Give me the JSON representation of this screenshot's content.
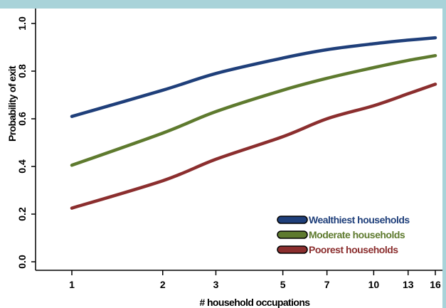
{
  "chart_data": {
    "type": "line",
    "title": "",
    "xlabel": "# household occupations",
    "ylabel": "Probability of exit",
    "x_scale": "log",
    "x_ticks": [
      1,
      2,
      3,
      5,
      7,
      10,
      13,
      16
    ],
    "y_ticks": [
      "0.0",
      "0.2",
      "0.4",
      "0.6",
      "0.8",
      "1.0"
    ],
    "xlim": [
      1,
      16
    ],
    "ylim": [
      0,
      1
    ],
    "grid": false,
    "legend_position": "bottom-right",
    "x": [
      1,
      2,
      3,
      5,
      7,
      10,
      13,
      16
    ],
    "series": [
      {
        "name": "Wealthiest households",
        "color": "#1f3f7a",
        "values": [
          0.61,
          0.72,
          0.79,
          0.855,
          0.89,
          0.915,
          0.93,
          0.94
        ]
      },
      {
        "name": "Moderate households",
        "color": "#5e7a2e",
        "values": [
          0.405,
          0.54,
          0.63,
          0.72,
          0.77,
          0.815,
          0.845,
          0.865
        ]
      },
      {
        "name": "Poorest households",
        "color": "#8b2e2e",
        "values": [
          0.225,
          0.34,
          0.43,
          0.525,
          0.6,
          0.655,
          0.705,
          0.745
        ]
      }
    ]
  }
}
